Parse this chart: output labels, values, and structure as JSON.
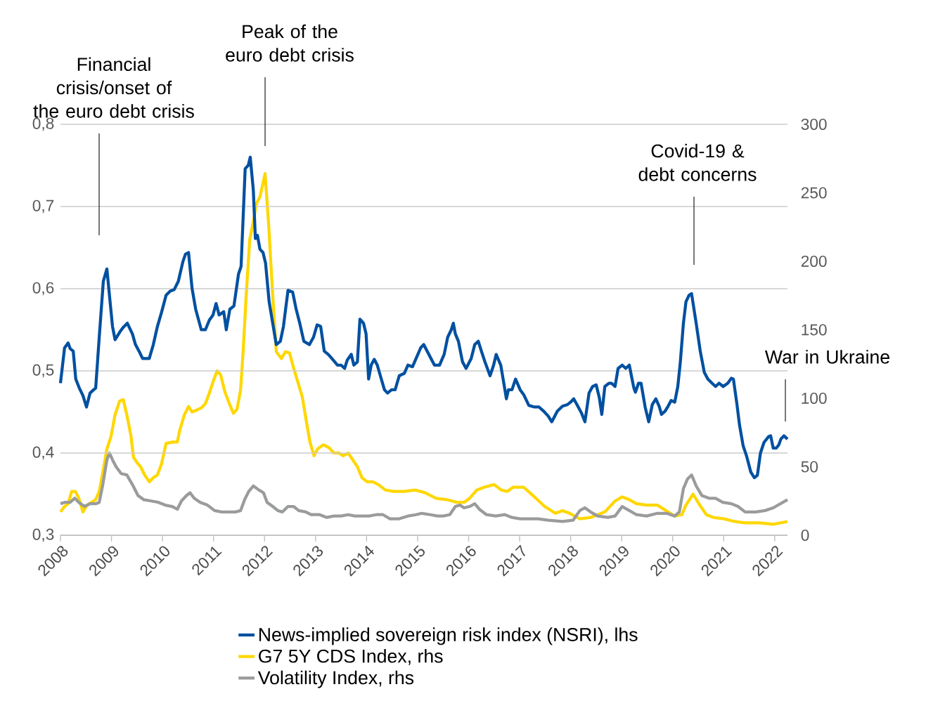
{
  "chart_data": {
    "type": "line",
    "grid": "y",
    "legend": "bottom",
    "line_style": "solid",
    "marker": "none",
    "xlim": [
      2008,
      2022.25
    ],
    "xticks": [
      2008,
      2009,
      2010,
      2011,
      2012,
      2013,
      2014,
      2015,
      2016,
      2017,
      2018,
      2019,
      2020,
      2021,
      2022
    ],
    "ylim": [
      0.3,
      0.8
    ],
    "yticks": [
      {
        "value": 0.3,
        "label": "0,3"
      },
      {
        "value": 0.4,
        "label": "0,4"
      },
      {
        "value": 0.5,
        "label": "0,5"
      },
      {
        "value": 0.6,
        "label": "0,6"
      },
      {
        "value": 0.7,
        "label": "0,7"
      },
      {
        "value": 0.8,
        "label": "0,8"
      }
    ],
    "y2lim": [
      0,
      300
    ],
    "y2ticks": [
      0,
      50,
      100,
      150,
      200,
      250,
      300
    ],
    "annotations": [
      "Financial crisis/onset of the euro debt crisis",
      "Peak of the euro debt crisis",
      "Covid-19 & debt concerns",
      "War in Ukraine"
    ],
    "series": [
      {
        "name": "News-implied sovereign risk index (NSRI), lhs",
        "color": "#0050a0",
        "x": [
          2008.0,
          2008.08,
          2008.15,
          2008.19,
          2008.25,
          2008.3,
          2008.37,
          2008.44,
          2008.51,
          2008.58,
          2008.65,
          2008.69,
          2008.76,
          2008.84,
          2008.91,
          2008.96,
          2009.02,
          2009.07,
          2009.16,
          2009.23,
          2009.31,
          2009.41,
          2009.47,
          2009.54,
          2009.61,
          2009.74,
          2009.82,
          2009.9,
          2009.98,
          2010.07,
          2010.15,
          2010.23,
          2010.31,
          2010.4,
          2010.45,
          2010.51,
          2010.58,
          2010.65,
          2010.76,
          2010.84,
          2010.92,
          2010.99,
          2011.05,
          2011.11,
          2011.2,
          2011.25,
          2011.32,
          2011.4,
          2011.49,
          2011.54,
          2011.58,
          2011.62,
          2011.68,
          2011.72,
          2011.78,
          2011.82,
          2011.86,
          2011.91,
          2011.97,
          2012.02,
          2012.09,
          2012.16,
          2012.23,
          2012.31,
          2012.37,
          2012.46,
          2012.55,
          2012.62,
          2012.69,
          2012.77,
          2012.88,
          2012.96,
          2013.03,
          2013.1,
          2013.17,
          2013.25,
          2013.32,
          2013.43,
          2013.5,
          2013.57,
          2013.62,
          2013.7,
          2013.75,
          2013.82,
          2013.87,
          2013.94,
          2013.99,
          2014.04,
          2014.09,
          2014.15,
          2014.21,
          2014.27,
          2014.35,
          2014.41,
          2014.49,
          2014.56,
          2014.64,
          2014.74,
          2014.81,
          2014.9,
          2014.97,
          2015.06,
          2015.12,
          2015.22,
          2015.33,
          2015.43,
          2015.52,
          2015.59,
          2015.66,
          2015.7,
          2015.74,
          2015.8,
          2015.88,
          2015.95,
          2016.05,
          2016.12,
          2016.19,
          2016.25,
          2016.32,
          2016.42,
          2016.49,
          2016.54,
          2016.63,
          2016.69,
          2016.74,
          2016.78,
          2016.85,
          2016.92,
          2017.01,
          2017.08,
          2017.18,
          2017.29,
          2017.38,
          2017.47,
          2017.56,
          2017.63,
          2017.74,
          2017.84,
          2017.94,
          2018.0,
          2018.06,
          2018.14,
          2018.21,
          2018.28,
          2018.36,
          2018.43,
          2018.5,
          2018.56,
          2018.61,
          2018.67,
          2018.75,
          2018.8,
          2018.87,
          2018.93,
          2019.01,
          2019.08,
          2019.15,
          2019.2,
          2019.24,
          2019.27,
          2019.33,
          2019.38,
          2019.46,
          2019.53,
          2019.6,
          2019.67,
          2019.74,
          2019.78,
          2019.85,
          2019.91,
          2019.97,
          2020.04,
          2020.1,
          2020.15,
          2020.21,
          2020.26,
          2020.32,
          2020.37,
          2020.46,
          2020.54,
          2020.62,
          2020.69,
          2020.77,
          2020.84,
          2020.91,
          2020.99,
          2021.08,
          2021.15,
          2021.19,
          2021.26,
          2021.31,
          2021.38,
          2021.45,
          2021.53,
          2021.6,
          2021.66,
          2021.72,
          2021.79,
          2021.88,
          2021.92,
          2021.97,
          2022.03,
          2022.08,
          2022.12,
          2022.18,
          2022.25
        ],
        "values": [
          0.485,
          0.528,
          0.534,
          0.527,
          0.524,
          0.49,
          0.479,
          0.47,
          0.456,
          0.473,
          0.477,
          0.479,
          0.541,
          0.609,
          0.624,
          0.592,
          0.554,
          0.538,
          0.547,
          0.553,
          0.558,
          0.545,
          0.532,
          0.524,
          0.515,
          0.515,
          0.532,
          0.554,
          0.571,
          0.592,
          0.597,
          0.599,
          0.609,
          0.633,
          0.642,
          0.644,
          0.6,
          0.575,
          0.55,
          0.55,
          0.562,
          0.568,
          0.582,
          0.568,
          0.572,
          0.55,
          0.575,
          0.579,
          0.618,
          0.627,
          0.686,
          0.746,
          0.75,
          0.76,
          0.72,
          0.661,
          0.665,
          0.648,
          0.644,
          0.631,
          0.584,
          0.558,
          0.532,
          0.536,
          0.554,
          0.598,
          0.596,
          0.575,
          0.558,
          0.536,
          0.532,
          0.541,
          0.556,
          0.554,
          0.524,
          0.52,
          0.515,
          0.507,
          0.507,
          0.503,
          0.513,
          0.52,
          0.507,
          0.511,
          0.563,
          0.558,
          0.545,
          0.49,
          0.507,
          0.514,
          0.507,
          0.494,
          0.477,
          0.473,
          0.477,
          0.477,
          0.494,
          0.497,
          0.507,
          0.505,
          0.515,
          0.528,
          0.532,
          0.52,
          0.507,
          0.507,
          0.52,
          0.541,
          0.55,
          0.558,
          0.545,
          0.536,
          0.511,
          0.503,
          0.515,
          0.532,
          0.536,
          0.524,
          0.511,
          0.494,
          0.507,
          0.52,
          0.507,
          0.485,
          0.466,
          0.477,
          0.477,
          0.49,
          0.477,
          0.471,
          0.458,
          0.456,
          0.456,
          0.451,
          0.445,
          0.438,
          0.451,
          0.457,
          0.459,
          0.462,
          0.466,
          0.457,
          0.449,
          0.438,
          0.473,
          0.481,
          0.483,
          0.468,
          0.447,
          0.481,
          0.485,
          0.485,
          0.481,
          0.503,
          0.507,
          0.503,
          0.507,
          0.491,
          0.479,
          0.474,
          0.485,
          0.485,
          0.456,
          0.438,
          0.459,
          0.466,
          0.456,
          0.447,
          0.451,
          0.457,
          0.464,
          0.462,
          0.481,
          0.511,
          0.558,
          0.584,
          0.592,
          0.594,
          0.558,
          0.524,
          0.498,
          0.49,
          0.485,
          0.481,
          0.485,
          0.481,
          0.485,
          0.491,
          0.49,
          0.459,
          0.434,
          0.409,
          0.396,
          0.377,
          0.37,
          0.373,
          0.4,
          0.413,
          0.42,
          0.421,
          0.406,
          0.406,
          0.41,
          0.417,
          0.421,
          0.417
        ]
      },
      {
        "name": "G7 5Y CDS Index, rhs",
        "color": "#ffd700",
        "axis": "y2",
        "x": [
          2008.0,
          2008.08,
          2008.15,
          2008.22,
          2008.29,
          2008.36,
          2008.44,
          2008.52,
          2008.61,
          2008.69,
          2008.76,
          2008.84,
          2008.91,
          2008.99,
          2009.07,
          2009.16,
          2009.23,
          2009.3,
          2009.38,
          2009.43,
          2009.5,
          2009.57,
          2009.65,
          2009.74,
          2009.82,
          2009.9,
          2009.98,
          2010.07,
          2010.19,
          2010.29,
          2010.34,
          2010.43,
          2010.51,
          2010.58,
          2010.65,
          2010.76,
          2010.84,
          2010.92,
          2010.99,
          2011.07,
          2011.14,
          2011.22,
          2011.31,
          2011.39,
          2011.46,
          2011.53,
          2011.58,
          2011.64,
          2011.71,
          2011.78,
          2011.84,
          2011.91,
          2012.01,
          2012.08,
          2012.16,
          2012.23,
          2012.33,
          2012.41,
          2012.49,
          2012.57,
          2012.66,
          2012.74,
          2012.82,
          2012.89,
          2012.97,
          2013.04,
          2013.15,
          2013.26,
          2013.36,
          2013.46,
          2013.54,
          2013.64,
          2013.73,
          2013.82,
          2013.91,
          2014.01,
          2014.12,
          2014.23,
          2014.37,
          2014.53,
          2014.74,
          2014.95,
          2015.15,
          2015.36,
          2015.57,
          2015.77,
          2015.91,
          2016.02,
          2016.16,
          2016.3,
          2016.5,
          2016.64,
          2016.76,
          2016.87,
          2017.08,
          2017.29,
          2017.49,
          2017.7,
          2017.84,
          2017.98,
          2018.18,
          2018.39,
          2018.67,
          2018.87,
          2019.01,
          2019.15,
          2019.29,
          2019.49,
          2019.7,
          2019.91,
          2020.04,
          2020.18,
          2020.26,
          2020.4,
          2020.53,
          2020.66,
          2020.8,
          2021.01,
          2021.21,
          2021.42,
          2021.7,
          2021.97,
          2022.11,
          2022.25
        ],
        "values": [
          17,
          21,
          23,
          32,
          32,
          27,
          17,
          22,
          24,
          26,
          32,
          48,
          63,
          72,
          88,
          98,
          99,
          88,
          73,
          57,
          53,
          50,
          44,
          39,
          42,
          44,
          52,
          67,
          68,
          68,
          77,
          88,
          94,
          90,
          91,
          93,
          96,
          104,
          112,
          120,
          117,
          105,
          96,
          89,
          92,
          106,
          134,
          175,
          216,
          229,
          242,
          247,
          264,
          227,
          175,
          134,
          129,
          134,
          133,
          122,
          111,
          101,
          83,
          68,
          58,
          63,
          66,
          64,
          60,
          60,
          58,
          60,
          55,
          50,
          42,
          39,
          39,
          37,
          33,
          32,
          32,
          33,
          31,
          27,
          26,
          24,
          24,
          27,
          33,
          35,
          37,
          33,
          32,
          35,
          35,
          28,
          21,
          16,
          18,
          16,
          12,
          13,
          17,
          25,
          28,
          26,
          23,
          22,
          22,
          17,
          14,
          15,
          22,
          30,
          22,
          15,
          13,
          12,
          10,
          9,
          9,
          8,
          9,
          10
        ]
      },
      {
        "name": "Volatility Index, rhs",
        "color": "#9a9b9c",
        "axis": "y2",
        "x": [
          2008.0,
          2008.08,
          2008.19,
          2008.28,
          2008.36,
          2008.47,
          2008.58,
          2008.69,
          2008.76,
          2008.83,
          2008.91,
          2008.96,
          2009.02,
          2009.09,
          2009.19,
          2009.3,
          2009.41,
          2009.52,
          2009.63,
          2009.78,
          2009.92,
          2010.05,
          2010.19,
          2010.29,
          2010.37,
          2010.47,
          2010.54,
          2010.62,
          2010.74,
          2010.88,
          2011.02,
          2011.16,
          2011.29,
          2011.43,
          2011.53,
          2011.61,
          2011.69,
          2011.78,
          2011.89,
          2011.98,
          2012.05,
          2012.16,
          2012.26,
          2012.35,
          2012.46,
          2012.57,
          2012.67,
          2012.81,
          2012.91,
          2013.08,
          2013.22,
          2013.36,
          2013.5,
          2013.64,
          2013.77,
          2013.91,
          2014.05,
          2014.19,
          2014.32,
          2014.46,
          2014.64,
          2014.81,
          2014.97,
          2015.08,
          2015.25,
          2015.39,
          2015.5,
          2015.63,
          2015.74,
          2015.83,
          2015.91,
          2016.02,
          2016.12,
          2016.21,
          2016.35,
          2016.53,
          2016.71,
          2016.85,
          2017.01,
          2017.18,
          2017.36,
          2017.56,
          2017.84,
          2018.05,
          2018.18,
          2018.28,
          2018.39,
          2018.53,
          2018.73,
          2018.87,
          2019.01,
          2019.15,
          2019.29,
          2019.49,
          2019.7,
          2019.88,
          2020.04,
          2020.13,
          2020.21,
          2020.29,
          2020.37,
          2020.46,
          2020.57,
          2020.71,
          2020.84,
          2020.98,
          2021.15,
          2021.28,
          2021.42,
          2021.63,
          2021.81,
          2021.97,
          2022.11,
          2022.25
        ],
        "values": [
          23,
          24,
          24,
          27,
          24,
          21,
          23,
          23,
          24,
          37,
          55,
          60,
          55,
          50,
          45,
          44,
          37,
          29,
          26,
          25,
          24,
          22,
          21,
          19,
          25,
          29,
          31,
          27,
          24,
          22,
          18,
          17,
          17,
          17,
          18,
          26,
          32,
          36,
          33,
          31,
          24,
          21,
          18,
          17,
          21,
          21,
          18,
          17,
          15,
          15,
          13,
          14,
          14,
          15,
          14,
          14,
          14,
          15,
          15,
          12,
          12,
          14,
          15,
          16,
          15,
          14,
          14,
          15,
          21,
          22,
          20,
          21,
          23,
          19,
          15,
          14,
          15,
          13,
          12,
          12,
          12,
          11,
          10,
          11,
          18,
          20,
          17,
          14,
          13,
          14,
          21,
          18,
          15,
          14,
          16,
          16,
          14,
          17,
          34,
          41,
          44,
          36,
          29,
          27,
          27,
          24,
          23,
          21,
          17,
          17,
          18,
          20,
          23,
          26
        ]
      }
    ]
  }
}
